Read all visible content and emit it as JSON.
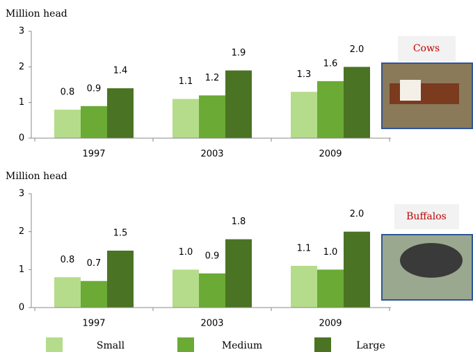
{
  "chart_data": [
    {
      "type": "bar",
      "ylabel": "Million head",
      "annotation": "Cows",
      "categories": [
        "1997",
        "2003",
        "2009"
      ],
      "series": [
        {
          "name": "Small",
          "color": "#b5dc8b",
          "values": [
            0.8,
            1.1,
            1.3
          ],
          "value_labels": [
            "0.8",
            "1.1",
            "1.3"
          ]
        },
        {
          "name": "Medium",
          "color": "#6aaa35",
          "values": [
            0.9,
            1.2,
            1.6
          ],
          "value_labels": [
            "0.9",
            "1.2",
            "1.6"
          ]
        },
        {
          "name": "Large",
          "color": "#4a7324",
          "values": [
            1.4,
            1.9,
            2.0
          ],
          "value_labels": [
            "1.4",
            "1.9",
            "2.0"
          ]
        }
      ],
      "ylim": [
        0,
        3
      ],
      "yticks": [
        0,
        1,
        2,
        3
      ]
    },
    {
      "type": "bar",
      "ylabel": "Million head",
      "annotation": "Buffalos",
      "categories": [
        "1997",
        "2003",
        "2009"
      ],
      "series": [
        {
          "color": "#b5dc8b",
          "values": [
            0.8,
            1.0,
            1.1
          ],
          "value_labels": [
            "0.8",
            "1.0",
            "1.1"
          ]
        },
        {
          "color": "#6aaa35",
          "values": [
            0.7,
            0.9,
            1.0
          ],
          "value_labels": [
            "0.7",
            "0.9",
            "1.0"
          ]
        },
        {
          "color": "#4a7324",
          "values": [
            1.5,
            1.8,
            2.0
          ],
          "value_labels": [
            "1.5",
            "1.8",
            "2.0"
          ]
        }
      ],
      "ylim": [
        0,
        3
      ],
      "yticks": [
        0,
        1,
        2,
        3
      ]
    }
  ]
}
